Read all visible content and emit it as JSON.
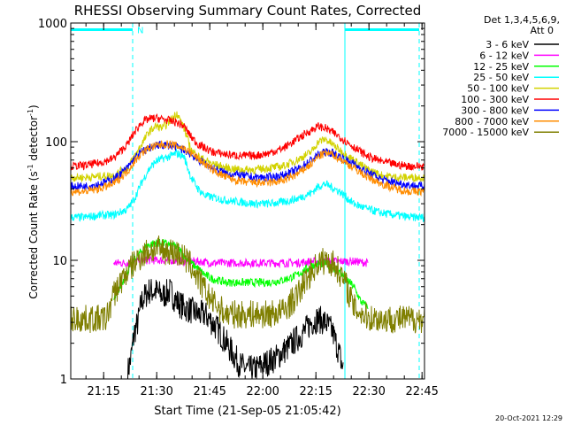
{
  "chart_data": {
    "type": "line",
    "title": "RHESSI Observing Summary Count Rates, Corrected",
    "xlabel": "Start Time (21-Sep-05 21:05:42)",
    "ylabel_main": "Corrected Count Rate (s",
    "ylabel_sup1": "-1",
    "ylabel_mid": " detector",
    "ylabel_sup2": "-1",
    "ylabel_end": ")",
    "y_scale": "log",
    "ylim": [
      1,
      1000
    ],
    "xlim_minutes": [
      0,
      100
    ],
    "x_ticks": [
      {
        "m": 9.3,
        "label": "21:15"
      },
      {
        "m": 24.3,
        "label": "21:30"
      },
      {
        "m": 39.3,
        "label": "21:45"
      },
      {
        "m": 54.3,
        "label": "22:00"
      },
      {
        "m": 69.3,
        "label": "22:15"
      },
      {
        "m": 84.3,
        "label": "22:30"
      },
      {
        "m": 99.3,
        "label": "22:45"
      }
    ],
    "y_ticks": [
      {
        "v": 1,
        "label": "1"
      },
      {
        "v": 10,
        "label": "10"
      },
      {
        "v": 100,
        "label": "100"
      },
      {
        "v": 1000,
        "label": "1000"
      }
    ],
    "legend_header": [
      "Det 1,3,4,5,6,9,",
      "Att 0"
    ],
    "legend_position": "right",
    "night_flag": {
      "label": "N",
      "y": 880,
      "spans": [
        [
          0,
          17.5
        ],
        [
          77.5,
          98.5
        ]
      ]
    },
    "boundary_lines": [
      {
        "m": 0,
        "style": "solid"
      },
      {
        "m": 17.5,
        "style": "dashed"
      },
      {
        "m": 77.5,
        "style": "solid"
      },
      {
        "m": 98.5,
        "style": "dashed"
      }
    ],
    "series": [
      {
        "name": "3 - 6 keV",
        "color": "#000000",
        "x": [
          0,
          15,
          16,
          17,
          18,
          19,
          20,
          22,
          24,
          26,
          28,
          30,
          32,
          34,
          36,
          38,
          40,
          42,
          44,
          46,
          48,
          50,
          52,
          54,
          56,
          58,
          60,
          62,
          64,
          66,
          68,
          70,
          72,
          74,
          76,
          77,
          78,
          100
        ],
        "y": [
          null,
          null,
          1.1,
          1.5,
          2.5,
          3.0,
          4.5,
          5.5,
          5.5,
          5.0,
          5.5,
          4.5,
          4.0,
          3.8,
          3.5,
          3.5,
          3.0,
          2.5,
          2.0,
          1.6,
          1.3,
          1.2,
          1.2,
          1.3,
          1.4,
          1.5,
          1.7,
          1.9,
          2.2,
          2.5,
          3.0,
          3.2,
          3.0,
          2.5,
          1.6,
          1.2,
          null,
          null
        ]
      },
      {
        "name": "6 - 12 keV",
        "color": "#ff00ff",
        "x": [
          0,
          11,
          12,
          16,
          20,
          24,
          28,
          32,
          36,
          40,
          44,
          48,
          52,
          56,
          60,
          64,
          68,
          72,
          76,
          80,
          84,
          85,
          100
        ],
        "y": [
          null,
          null,
          9.5,
          9.5,
          10.0,
          10.0,
          10.0,
          9.8,
          9.8,
          9.5,
          9.5,
          9.5,
          9.5,
          9.5,
          9.5,
          9.5,
          9.8,
          9.8,
          9.8,
          9.8,
          9.5,
          null,
          null
        ]
      },
      {
        "name": "12 - 25 keV",
        "color": "#00ff00",
        "x": [
          0,
          11,
          12,
          14,
          16,
          18,
          20,
          22,
          24,
          26,
          28,
          30,
          32,
          34,
          36,
          38,
          40,
          44,
          48,
          52,
          56,
          60,
          64,
          68,
          72,
          76,
          80,
          82,
          84,
          85,
          100
        ],
        "y": [
          null,
          null,
          4.5,
          6.0,
          8.0,
          10.0,
          12.0,
          13.5,
          14.0,
          14.0,
          13.5,
          13.0,
          11.0,
          9.5,
          8.5,
          7.5,
          7.0,
          6.5,
          6.5,
          6.5,
          6.5,
          6.8,
          7.5,
          9.0,
          9.5,
          8.0,
          6.0,
          4.5,
          4.0,
          null,
          null
        ]
      },
      {
        "name": "25 - 50 keV",
        "color": "#00ffff",
        "x": [
          0,
          4,
          8,
          12,
          16,
          18,
          20,
          22,
          24,
          26,
          28,
          30,
          32,
          34,
          36,
          38,
          40,
          44,
          48,
          52,
          56,
          60,
          64,
          68,
          70,
          72,
          76,
          80,
          84,
          88,
          92,
          96,
          100
        ],
        "y": [
          23,
          23,
          24,
          24,
          27,
          33,
          45,
          58,
          68,
          72,
          75,
          80,
          75,
          50,
          40,
          35,
          34,
          32,
          31,
          30,
          30,
          31,
          33,
          37,
          42,
          44,
          38,
          30,
          27,
          25,
          24,
          23,
          23
        ]
      },
      {
        "name": "50 - 100 keV",
        "color": "#d2d200",
        "x": [
          0,
          4,
          8,
          12,
          16,
          18,
          20,
          22,
          24,
          26,
          28,
          30,
          32,
          34,
          36,
          40,
          44,
          48,
          52,
          56,
          60,
          64,
          68,
          70,
          72,
          74,
          76,
          80,
          84,
          88,
          92,
          96,
          100
        ],
        "y": [
          50,
          50,
          51,
          52,
          60,
          75,
          95,
          120,
          135,
          130,
          150,
          175,
          130,
          85,
          75,
          65,
          60,
          58,
          58,
          60,
          62,
          70,
          82,
          100,
          105,
          95,
          85,
          70,
          58,
          52,
          50,
          50,
          50
        ]
      },
      {
        "name": "100 - 300 keV",
        "color": "#ff0000",
        "x": [
          0,
          4,
          8,
          12,
          16,
          18,
          20,
          22,
          24,
          26,
          28,
          30,
          32,
          34,
          36,
          38,
          40,
          44,
          48,
          52,
          56,
          60,
          64,
          68,
          70,
          72,
          74,
          76,
          80,
          84,
          88,
          92,
          96,
          100
        ],
        "y": [
          62,
          63,
          66,
          72,
          95,
          120,
          145,
          155,
          158,
          155,
          150,
          145,
          135,
          110,
          95,
          88,
          82,
          78,
          76,
          76,
          80,
          88,
          105,
          125,
          135,
          130,
          120,
          110,
          90,
          75,
          68,
          64,
          62,
          62
        ]
      },
      {
        "name": "300 - 800 keV",
        "color": "#0000ff",
        "x": [
          0,
          4,
          8,
          12,
          16,
          18,
          20,
          22,
          24,
          26,
          28,
          30,
          32,
          34,
          36,
          40,
          44,
          48,
          52,
          56,
          60,
          64,
          68,
          70,
          72,
          74,
          76,
          80,
          84,
          88,
          92,
          96,
          100
        ],
        "y": [
          42,
          42,
          44,
          48,
          60,
          72,
          82,
          88,
          92,
          94,
          93,
          90,
          85,
          78,
          70,
          60,
          54,
          52,
          50,
          50,
          52,
          58,
          70,
          78,
          82,
          80,
          75,
          65,
          55,
          48,
          45,
          43,
          42
        ]
      },
      {
        "name": "800 - 7000 keV",
        "color": "#ff8c00",
        "x": [
          0,
          4,
          8,
          12,
          16,
          18,
          20,
          22,
          24,
          26,
          28,
          30,
          32,
          34,
          36,
          40,
          44,
          48,
          52,
          56,
          60,
          64,
          68,
          70,
          72,
          74,
          76,
          80,
          84,
          88,
          92,
          96,
          100
        ],
        "y": [
          38,
          38,
          40,
          44,
          56,
          68,
          80,
          88,
          92,
          95,
          95,
          92,
          88,
          80,
          72,
          58,
          50,
          46,
          45,
          45,
          47,
          53,
          65,
          75,
          80,
          78,
          72,
          60,
          50,
          44,
          40,
          38,
          38
        ]
      },
      {
        "name": "7000 - 15000 keV",
        "color": "#7f7f00",
        "x": [
          0,
          4,
          8,
          10,
          11,
          12,
          14,
          16,
          18,
          20,
          22,
          24,
          26,
          28,
          30,
          32,
          34,
          36,
          38,
          40,
          44,
          48,
          52,
          56,
          60,
          64,
          66,
          68,
          70,
          72,
          74,
          76,
          78,
          80,
          84,
          88,
          92,
          96,
          100
        ],
        "y": [
          3.2,
          3.2,
          3.2,
          3.2,
          4.0,
          5.0,
          6.5,
          8.0,
          9.5,
          11.0,
          12.0,
          12.5,
          12.0,
          12.0,
          11.5,
          10.5,
          9.0,
          7.0,
          5.5,
          4.5,
          3.5,
          3.5,
          3.5,
          3.5,
          3.7,
          5.0,
          6.5,
          8.0,
          9.5,
          10.0,
          9.5,
          8.0,
          6.0,
          4.0,
          3.3,
          3.2,
          3.2,
          3.2,
          3.2
        ]
      }
    ]
  },
  "footer": {
    "timestamp": "20-Oct-2021 12:29"
  }
}
